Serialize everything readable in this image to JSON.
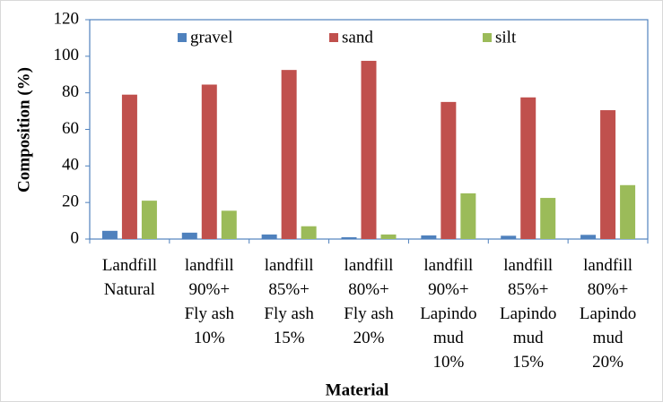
{
  "chart_data": {
    "type": "bar",
    "categories": [
      "Landfill\nNatural",
      "landfill\n90%+\nFly ash\n10%",
      "landfill\n85%+\nFly ash\n15%",
      "landfill\n80%+\nFly ash\n20%",
      "landfill\n90%+\nLapindo\nmud\n10%",
      "landfill\n85%+\nLapindo\nmud\n15%",
      "landfill\n80%+\nLapindo\nmud\n20%"
    ],
    "series": [
      {
        "name": "gravel",
        "color": "#4f81bd",
        "values": [
          4.5,
          3.5,
          2.5,
          1,
          2,
          1.8,
          2.3
        ]
      },
      {
        "name": "sand",
        "color": "#c0504d",
        "values": [
          79,
          84.5,
          92.5,
          97.5,
          75,
          77.5,
          70.5
        ]
      },
      {
        "name": "silt",
        "color": "#9bbb59",
        "values": [
          21,
          15.5,
          7,
          2.5,
          25,
          22.5,
          29.5
        ]
      }
    ],
    "xlabel": "Material",
    "ylabel": "Composition (%)",
    "ylim": [
      0,
      120
    ],
    "yticks": [
      0,
      20,
      40,
      60,
      80,
      100,
      120
    ],
    "grid": false,
    "legend": "top"
  }
}
